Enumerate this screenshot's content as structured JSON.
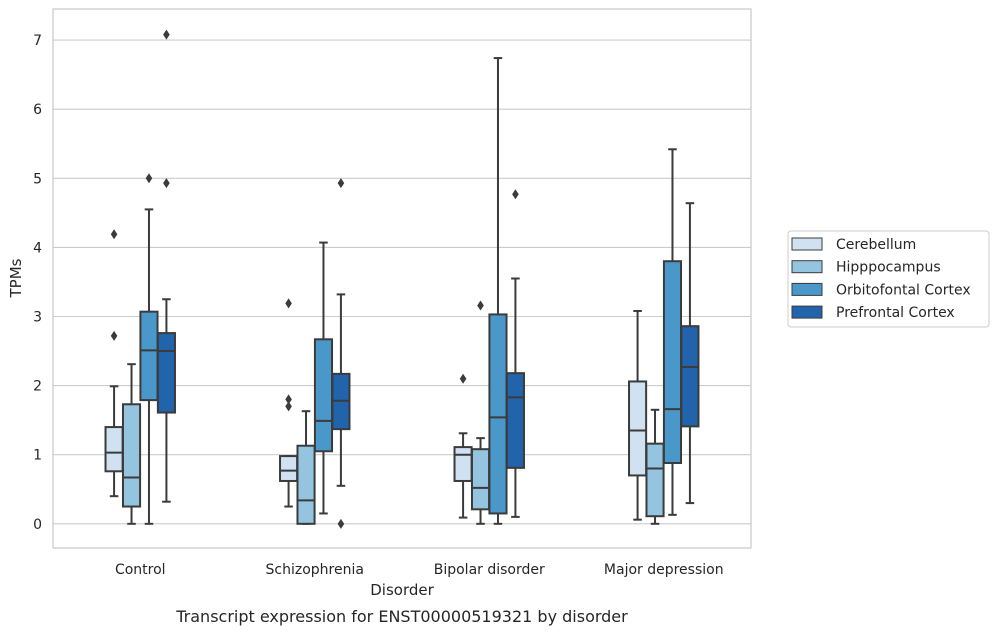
{
  "chart_data": {
    "type": "box",
    "caption": "Transcript expression for ENST00000519321 by disorder",
    "xlabel": "Disorder",
    "ylabel": "TPMs",
    "ylim": [
      -0.35,
      7.45
    ],
    "yticks": [
      0,
      1,
      2,
      3,
      4,
      5,
      6,
      7
    ],
    "grid": "horizontal",
    "legend_position": "right",
    "categories": [
      "Control",
      "Schizophrenia",
      "Bipolar disorder",
      "Major depression"
    ],
    "series": [
      {
        "name": "Cerebellum",
        "color": "#d0e1f2",
        "boxes": [
          {
            "whisker_low": 0.4,
            "q1": 0.76,
            "median": 1.03,
            "q3": 1.4,
            "whisker_high": 1.99,
            "outliers": [
              2.72,
              4.19
            ]
          },
          {
            "whisker_low": 0.25,
            "q1": 0.62,
            "median": 0.77,
            "q3": 0.98,
            "whisker_high": 0.98,
            "outliers": [
              1.7,
              1.8,
              3.19
            ]
          },
          {
            "whisker_low": 0.09,
            "q1": 0.62,
            "median": 1.0,
            "q3": 1.11,
            "whisker_high": 1.31,
            "outliers": [
              2.1
            ]
          },
          {
            "whisker_low": 0.06,
            "q1": 0.7,
            "median": 1.35,
            "q3": 2.06,
            "whisker_high": 3.08,
            "outliers": []
          }
        ]
      },
      {
        "name": "Hipppocampus",
        "color": "#94c4df",
        "boxes": [
          {
            "whisker_low": 0.0,
            "q1": 0.25,
            "median": 0.67,
            "q3": 1.73,
            "whisker_high": 2.31,
            "outliers": []
          },
          {
            "whisker_low": 0.0,
            "q1": 0.0,
            "median": 0.34,
            "q3": 1.13,
            "whisker_high": 1.63,
            "outliers": []
          },
          {
            "whisker_low": 0.0,
            "q1": 0.21,
            "median": 0.52,
            "q3": 1.08,
            "whisker_high": 1.24,
            "outliers": [
              3.16
            ]
          },
          {
            "whisker_low": 0.0,
            "q1": 0.11,
            "median": 0.8,
            "q3": 1.16,
            "whisker_high": 1.65,
            "outliers": []
          }
        ]
      },
      {
        "name": "Orbitofontal Cortex",
        "color": "#4a98c9",
        "boxes": [
          {
            "whisker_low": 0.0,
            "q1": 1.79,
            "median": 2.51,
            "q3": 3.07,
            "whisker_high": 4.55,
            "outliers": [
              5.0
            ]
          },
          {
            "whisker_low": 0.15,
            "q1": 1.05,
            "median": 1.49,
            "q3": 2.67,
            "whisker_high": 4.07,
            "outliers": []
          },
          {
            "whisker_low": 0.0,
            "q1": 0.15,
            "median": 1.54,
            "q3": 3.03,
            "whisker_high": 6.74,
            "outliers": []
          },
          {
            "whisker_low": 0.13,
            "q1": 0.88,
            "median": 1.66,
            "q3": 3.8,
            "whisker_high": 5.42,
            "outliers": []
          }
        ]
      },
      {
        "name": "Prefrontal Cortex",
        "color": "#2164ab",
        "boxes": [
          {
            "whisker_low": 0.32,
            "q1": 1.61,
            "median": 2.5,
            "q3": 2.76,
            "whisker_high": 3.25,
            "outliers": [
              4.93,
              7.08
            ]
          },
          {
            "whisker_low": 0.55,
            "q1": 1.37,
            "median": 1.78,
            "q3": 2.17,
            "whisker_high": 3.32,
            "outliers": [
              0.0,
              4.93
            ]
          },
          {
            "whisker_low": 0.1,
            "q1": 0.81,
            "median": 1.83,
            "q3": 2.18,
            "whisker_high": 3.55,
            "outliers": [
              4.77
            ]
          },
          {
            "whisker_low": 0.3,
            "q1": 1.41,
            "median": 2.27,
            "q3": 2.86,
            "whisker_high": 4.64,
            "outliers": []
          }
        ]
      }
    ]
  }
}
